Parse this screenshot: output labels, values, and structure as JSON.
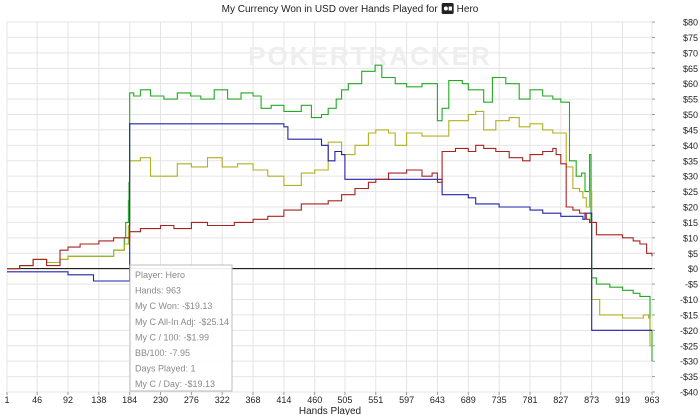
{
  "chart_data": {
    "type": "line",
    "title": {
      "prefix": "My Currency Won in USD over Hands Played for",
      "site_icon": "ps-logo-icon",
      "player": "Hero"
    },
    "watermark": "POKERTRACKER",
    "xlabel": "Hands Played",
    "ylabel": "",
    "x_ticks": [
      1,
      46,
      92,
      138,
      184,
      230,
      276,
      322,
      368,
      414,
      460,
      505,
      551,
      597,
      643,
      689,
      735,
      781,
      827,
      873,
      919,
      963
    ],
    "x_range": [
      1,
      963
    ],
    "y_ticks": [
      -40,
      -35,
      -30,
      -25,
      -20,
      -15,
      -10,
      -5,
      0,
      5,
      10,
      15,
      20,
      25,
      30,
      35,
      40,
      45,
      50,
      55,
      60,
      65,
      70,
      75,
      80
    ],
    "y_tick_labels": [
      "-$40",
      "-$35",
      "-$30",
      "-$25",
      "-$20",
      "-$15",
      "-$10",
      "-$5",
      "$0",
      "$5",
      "$10",
      "$15",
      "$20",
      "$25",
      "$30",
      "$35",
      "$40",
      "$45",
      "$50",
      "$55",
      "$60",
      "$65",
      "$70",
      "$75",
      "$80"
    ],
    "ylim": [
      -40,
      80
    ],
    "grid": true,
    "colors": {
      "green": "#22aa22",
      "olive": "#b0b020",
      "blue": "#2222aa",
      "red": "#aa2222",
      "zero_line": "#000000",
      "grid": "#e4e4e4"
    },
    "series": [
      {
        "color": "#22aa22",
        "points": [
          [
            1,
            0
          ],
          [
            20,
            1
          ],
          [
            40,
            3
          ],
          [
            60,
            2
          ],
          [
            80,
            3
          ],
          [
            92,
            4
          ],
          [
            110,
            4
          ],
          [
            138,
            4
          ],
          [
            160,
            6
          ],
          [
            176,
            10
          ],
          [
            178,
            15
          ],
          [
            182,
            22
          ],
          [
            183,
            28
          ],
          [
            184,
            57
          ],
          [
            190,
            56
          ],
          [
            200,
            58
          ],
          [
            215,
            56
          ],
          [
            235,
            55
          ],
          [
            255,
            57
          ],
          [
            275,
            56
          ],
          [
            290,
            55
          ],
          [
            310,
            58
          ],
          [
            330,
            55
          ],
          [
            350,
            57
          ],
          [
            368,
            56
          ],
          [
            380,
            52
          ],
          [
            395,
            53
          ],
          [
            414,
            51
          ],
          [
            440,
            53
          ],
          [
            455,
            49
          ],
          [
            470,
            50
          ],
          [
            480,
            52
          ],
          [
            492,
            55
          ],
          [
            500,
            58
          ],
          [
            510,
            60
          ],
          [
            530,
            64
          ],
          [
            550,
            66
          ],
          [
            560,
            62
          ],
          [
            580,
            60
          ],
          [
            597,
            59
          ],
          [
            620,
            60
          ],
          [
            643,
            48
          ],
          [
            650,
            52
          ],
          [
            660,
            61
          ],
          [
            680,
            60
          ],
          [
            689,
            58
          ],
          [
            700,
            58
          ],
          [
            712,
            54
          ],
          [
            725,
            62
          ],
          [
            745,
            60
          ],
          [
            765,
            55
          ],
          [
            781,
            58
          ],
          [
            800,
            56
          ],
          [
            815,
            55
          ],
          [
            827,
            54
          ],
          [
            840,
            35
          ],
          [
            850,
            30
          ],
          [
            858,
            31
          ],
          [
            863,
            25
          ],
          [
            870,
            37
          ],
          [
            872,
            15
          ],
          [
            873,
            -3
          ],
          [
            880,
            -5
          ],
          [
            900,
            -6
          ],
          [
            919,
            -7
          ],
          [
            935,
            -8
          ],
          [
            945,
            -9
          ],
          [
            955,
            -9
          ],
          [
            960,
            -20
          ],
          [
            963,
            -30
          ]
        ]
      },
      {
        "color": "#b0b020",
        "points": [
          [
            1,
            0
          ],
          [
            20,
            1
          ],
          [
            40,
            3
          ],
          [
            60,
            2
          ],
          [
            80,
            3
          ],
          [
            92,
            4
          ],
          [
            110,
            4
          ],
          [
            138,
            4
          ],
          [
            160,
            6
          ],
          [
            176,
            8
          ],
          [
            182,
            14
          ],
          [
            184,
            35
          ],
          [
            200,
            36
          ],
          [
            215,
            30
          ],
          [
            235,
            30
          ],
          [
            255,
            34
          ],
          [
            276,
            33
          ],
          [
            300,
            36
          ],
          [
            322,
            33
          ],
          [
            345,
            34
          ],
          [
            368,
            32
          ],
          [
            390,
            30
          ],
          [
            414,
            27
          ],
          [
            440,
            31
          ],
          [
            460,
            32
          ],
          [
            480,
            41
          ],
          [
            500,
            37
          ],
          [
            520,
            40
          ],
          [
            540,
            44
          ],
          [
            551,
            45
          ],
          [
            570,
            44
          ],
          [
            580,
            40
          ],
          [
            597,
            44
          ],
          [
            620,
            43
          ],
          [
            643,
            43
          ],
          [
            660,
            48
          ],
          [
            689,
            50
          ],
          [
            700,
            51
          ],
          [
            712,
            45
          ],
          [
            730,
            48
          ],
          [
            750,
            49
          ],
          [
            765,
            46
          ],
          [
            781,
            47
          ],
          [
            800,
            45
          ],
          [
            815,
            44
          ],
          [
            827,
            44
          ],
          [
            835,
            33
          ],
          [
            845,
            26
          ],
          [
            855,
            25
          ],
          [
            860,
            23
          ],
          [
            865,
            20
          ],
          [
            870,
            25
          ],
          [
            873,
            -10
          ],
          [
            885,
            -15
          ],
          [
            900,
            -15
          ],
          [
            919,
            -16
          ],
          [
            940,
            -16
          ],
          [
            950,
            -15
          ],
          [
            958,
            -16
          ],
          [
            960,
            -25
          ],
          [
            963,
            -25
          ]
        ]
      },
      {
        "color": "#2222aa",
        "points": [
          [
            1,
            -1
          ],
          [
            40,
            -1
          ],
          [
            92,
            -2
          ],
          [
            130,
            -4
          ],
          [
            180,
            -4
          ],
          [
            184,
            47
          ],
          [
            230,
            47
          ],
          [
            322,
            47
          ],
          [
            414,
            46
          ],
          [
            420,
            42
          ],
          [
            460,
            42
          ],
          [
            470,
            40
          ],
          [
            480,
            35
          ],
          [
            490,
            38
          ],
          [
            500,
            37
          ],
          [
            505,
            29
          ],
          [
            551,
            29
          ],
          [
            597,
            29
          ],
          [
            643,
            29
          ],
          [
            650,
            24
          ],
          [
            689,
            23
          ],
          [
            700,
            21
          ],
          [
            720,
            21
          ],
          [
            735,
            20
          ],
          [
            781,
            19
          ],
          [
            800,
            18
          ],
          [
            827,
            17
          ],
          [
            840,
            17
          ],
          [
            860,
            16
          ],
          [
            863,
            18
          ],
          [
            873,
            -20
          ],
          [
            919,
            -20
          ],
          [
            963,
            -20
          ]
        ]
      },
      {
        "color": "#aa2222",
        "points": [
          [
            1,
            0
          ],
          [
            20,
            1
          ],
          [
            40,
            3
          ],
          [
            60,
            1
          ],
          [
            80,
            6
          ],
          [
            92,
            7
          ],
          [
            110,
            8
          ],
          [
            138,
            9
          ],
          [
            160,
            10
          ],
          [
            184,
            12
          ],
          [
            200,
            13
          ],
          [
            230,
            14
          ],
          [
            250,
            13
          ],
          [
            276,
            15
          ],
          [
            300,
            14
          ],
          [
            322,
            14
          ],
          [
            340,
            15
          ],
          [
            368,
            16
          ],
          [
            390,
            17
          ],
          [
            414,
            19
          ],
          [
            440,
            21
          ],
          [
            460,
            21
          ],
          [
            480,
            22
          ],
          [
            500,
            24
          ],
          [
            520,
            26
          ],
          [
            540,
            28
          ],
          [
            551,
            29
          ],
          [
            570,
            31
          ],
          [
            597,
            32
          ],
          [
            620,
            30
          ],
          [
            635,
            31
          ],
          [
            643,
            28
          ],
          [
            650,
            38
          ],
          [
            670,
            39
          ],
          [
            689,
            38
          ],
          [
            700,
            40
          ],
          [
            712,
            39
          ],
          [
            730,
            38
          ],
          [
            750,
            36
          ],
          [
            770,
            35
          ],
          [
            781,
            37
          ],
          [
            800,
            38
          ],
          [
            815,
            39
          ],
          [
            820,
            37
          ],
          [
            827,
            34
          ],
          [
            835,
            20
          ],
          [
            845,
            19
          ],
          [
            855,
            18
          ],
          [
            865,
            16
          ],
          [
            870,
            15
          ],
          [
            875,
            15
          ],
          [
            880,
            11
          ],
          [
            900,
            11
          ],
          [
            919,
            10
          ],
          [
            935,
            9
          ],
          [
            945,
            8
          ],
          [
            955,
            5
          ],
          [
            963,
            4
          ]
        ]
      }
    ],
    "tooltip": [
      {
        "label": "Player:",
        "value": "Hero"
      },
      {
        "label": "Hands:",
        "value": "963"
      },
      {
        "label": "My C Won:",
        "value": "-$19.13"
      },
      {
        "label": "My C All-In Adj:",
        "value": "-$25.14"
      },
      {
        "label": "My C / 100:",
        "value": "-$1.99"
      },
      {
        "label": "BB/100:",
        "value": "-7.95"
      },
      {
        "label": "Days Played:",
        "value": "1"
      },
      {
        "label": "My C / Day:",
        "value": "-$19.13"
      }
    ]
  }
}
